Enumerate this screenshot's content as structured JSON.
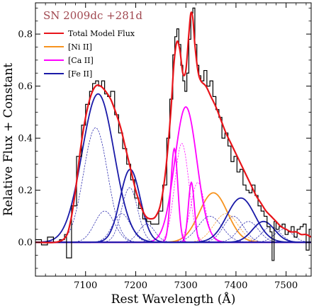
{
  "chart_data": {
    "type": "line",
    "title": "",
    "annotation": "SN 2009dc +281d",
    "annotation_color": "#a0474f",
    "xlabel": "Rest Wavelength (Å)",
    "ylabel": "Relative Flux + Constant",
    "xlim": [
      7000,
      7550
    ],
    "ylim": [
      -0.13,
      0.92
    ],
    "xticks": [
      7100,
      7200,
      7300,
      7400,
      7500
    ],
    "yticks": [
      0.0,
      0.2,
      0.4,
      0.6,
      0.8
    ],
    "xtick_labels": [
      "7100",
      "7200",
      "7300",
      "7400",
      "7500"
    ],
    "ytick_labels": [
      "0.0",
      "0.2",
      "0.4",
      "0.6",
      "0.8"
    ],
    "grid": false,
    "legend_position": "top-left",
    "legend": [
      {
        "label": "Total Model Flux",
        "color": "#e8141a"
      },
      {
        "label": "[Ni II]",
        "color": "#f7931e"
      },
      {
        "label": "[Ca II]",
        "color": "#ff00ff"
      },
      {
        "label": "[Fe II]",
        "color": "#1a1aa8"
      }
    ],
    "observed_spectrum": {
      "color": "#000000",
      "style": "steps",
      "x": [
        7000,
        7012,
        7024,
        7036,
        7048,
        7058,
        7062,
        7072,
        7082,
        7092,
        7100,
        7108,
        7114,
        7120,
        7126,
        7132,
        7138,
        7144,
        7150,
        7158,
        7166,
        7174,
        7182,
        7190,
        7198,
        7206,
        7214,
        7222,
        7230,
        7238,
        7246,
        7254,
        7262,
        7268,
        7274,
        7278,
        7282,
        7286,
        7290,
        7294,
        7298,
        7302,
        7306,
        7310,
        7314,
        7318,
        7322,
        7326,
        7330,
        7336,
        7342,
        7348,
        7354,
        7360,
        7366,
        7372,
        7378,
        7384,
        7390,
        7396,
        7402,
        7408,
        7414,
        7420,
        7426,
        7432,
        7438,
        7444,
        7450,
        7456,
        7462,
        7468,
        7472,
        7476,
        7480,
        7486,
        7492,
        7498,
        7504,
        7510,
        7516,
        7522,
        7528,
        7534,
        7540,
        7546,
        7550
      ],
      "y": [
        0.01,
        -0.01,
        0.02,
        0.0,
        0.01,
        0.03,
        -0.06,
        0.14,
        0.33,
        0.45,
        0.53,
        0.58,
        0.61,
        0.62,
        0.6,
        0.62,
        0.57,
        0.56,
        0.58,
        0.49,
        0.42,
        0.36,
        0.3,
        0.24,
        0.17,
        0.13,
        0.09,
        0.08,
        0.07,
        0.07,
        0.12,
        0.22,
        0.4,
        0.55,
        0.72,
        0.79,
        0.82,
        0.76,
        0.68,
        0.62,
        0.58,
        0.65,
        0.78,
        0.88,
        0.9,
        0.76,
        0.68,
        0.64,
        0.62,
        0.66,
        0.6,
        0.62,
        0.56,
        0.51,
        0.48,
        0.4,
        0.42,
        0.37,
        0.31,
        0.33,
        0.27,
        0.28,
        0.22,
        0.2,
        0.19,
        0.22,
        0.18,
        0.14,
        0.12,
        0.1,
        0.06,
        0.04,
        -0.07,
        0.08,
        0.05,
        0.06,
        0.07,
        0.03,
        0.04,
        0.06,
        0.02,
        0.05,
        0.06,
        0.07,
        -0.03,
        0.05,
        0.05
      ]
    },
    "total_model": {
      "color": "#e8141a",
      "x": [
        7000,
        7040,
        7060,
        7070,
        7080,
        7090,
        7100,
        7110,
        7120,
        7130,
        7140,
        7150,
        7160,
        7170,
        7180,
        7190,
        7200,
        7210,
        7220,
        7230,
        7240,
        7250,
        7260,
        7270,
        7276,
        7282,
        7288,
        7294,
        7300,
        7306,
        7310,
        7314,
        7318,
        7324,
        7330,
        7340,
        7350,
        7360,
        7370,
        7380,
        7390,
        7400,
        7410,
        7420,
        7430,
        7440,
        7450,
        7460,
        7470,
        7480,
        7490,
        7500,
        7510,
        7520,
        7530,
        7540,
        7550
      ],
      "y": [
        0.0,
        0.0,
        0.02,
        0.08,
        0.2,
        0.36,
        0.48,
        0.56,
        0.6,
        0.6,
        0.58,
        0.55,
        0.5,
        0.44,
        0.36,
        0.28,
        0.2,
        0.14,
        0.1,
        0.09,
        0.1,
        0.15,
        0.28,
        0.5,
        0.68,
        0.77,
        0.74,
        0.65,
        0.66,
        0.8,
        0.88,
        0.86,
        0.76,
        0.66,
        0.62,
        0.6,
        0.56,
        0.52,
        0.47,
        0.42,
        0.38,
        0.34,
        0.3,
        0.26,
        0.22,
        0.18,
        0.15,
        0.12,
        0.1,
        0.08,
        0.06,
        0.05,
        0.04,
        0.04,
        0.03,
        0.03,
        0.02
      ]
    },
    "components": [
      {
        "name": "[Ni II]",
        "color": "#f7931e",
        "center": 7355,
        "sigma": 28,
        "amp": 0.19,
        "style": "solid"
      },
      {
        "name": "[Ni II]",
        "color": "#f7931e",
        "center": 7380,
        "sigma": 24,
        "amp": 0.11,
        "style": "dashed"
      },
      {
        "name": "[Ca II]",
        "color": "#ff00ff",
        "center": 7300,
        "sigma": 22,
        "amp": 0.52,
        "style": "solid"
      },
      {
        "name": "[Ca II]",
        "color": "#ff00ff",
        "center": 7277,
        "sigma": 7,
        "amp": 0.36,
        "style": "solid"
      },
      {
        "name": "[Ca II]",
        "color": "#ff00ff",
        "center": 7311,
        "sigma": 6,
        "amp": 0.23,
        "style": "solid"
      },
      {
        "name": "[Ca II]",
        "color": "#ff00ff",
        "center": 7292,
        "sigma": 14,
        "amp": 0.38,
        "style": "dashed"
      },
      {
        "name": "[Ca II]",
        "color": "#ff00ff",
        "center": 7324,
        "sigma": 14,
        "amp": 0.23,
        "style": "dashed"
      },
      {
        "name": "[Fe II]",
        "color": "#1a1aa8",
        "center": 7125,
        "sigma": 32,
        "amp": 0.57,
        "style": "solid"
      },
      {
        "name": "[Fe II]",
        "color": "#1a1aa8",
        "center": 7189,
        "sigma": 20,
        "amp": 0.28,
        "style": "solid"
      },
      {
        "name": "[Fe II]",
        "color": "#1a1aa8",
        "center": 7410,
        "sigma": 28,
        "amp": 0.17,
        "style": "solid"
      },
      {
        "name": "[Fe II]",
        "color": "#1a1aa8",
        "center": 7455,
        "sigma": 22,
        "amp": 0.08,
        "style": "solid"
      },
      {
        "name": "[Fe II]",
        "color": "#1a1aa8",
        "center": 7120,
        "sigma": 24,
        "amp": 0.44,
        "style": "dashed"
      },
      {
        "name": "[Fe II]",
        "color": "#1a1aa8",
        "center": 7138,
        "sigma": 20,
        "amp": 0.12,
        "style": "dashed"
      },
      {
        "name": "[Fe II]",
        "color": "#1a1aa8",
        "center": 7172,
        "sigma": 18,
        "amp": 0.11,
        "style": "dashed"
      },
      {
        "name": "[Fe II]",
        "color": "#1a1aa8",
        "center": 7188,
        "sigma": 16,
        "amp": 0.21,
        "style": "dashed"
      },
      {
        "name": "[Fe II]",
        "color": "#1a1aa8",
        "center": 7222,
        "sigma": 16,
        "amp": 0.07,
        "style": "dashed"
      },
      {
        "name": "[Fe II]",
        "color": "#1a1aa8",
        "center": 7348,
        "sigma": 24,
        "amp": 0.1,
        "style": "dashed"
      },
      {
        "name": "[Fe II]",
        "color": "#1a1aa8",
        "center": 7395,
        "sigma": 20,
        "amp": 0.1,
        "style": "dashed"
      },
      {
        "name": "[Fe II]",
        "color": "#1a1aa8",
        "center": 7425,
        "sigma": 20,
        "amp": 0.08,
        "style": "dashed"
      },
      {
        "name": "[Fe II]",
        "color": "#1a1aa8",
        "center": 7470,
        "sigma": 18,
        "amp": 0.06,
        "style": "dashed"
      },
      {
        "name": "[Fe II]",
        "color": "#1a1aa8",
        "center": 7495,
        "sigma": 18,
        "amp": 0.05,
        "style": "dashed"
      }
    ]
  }
}
